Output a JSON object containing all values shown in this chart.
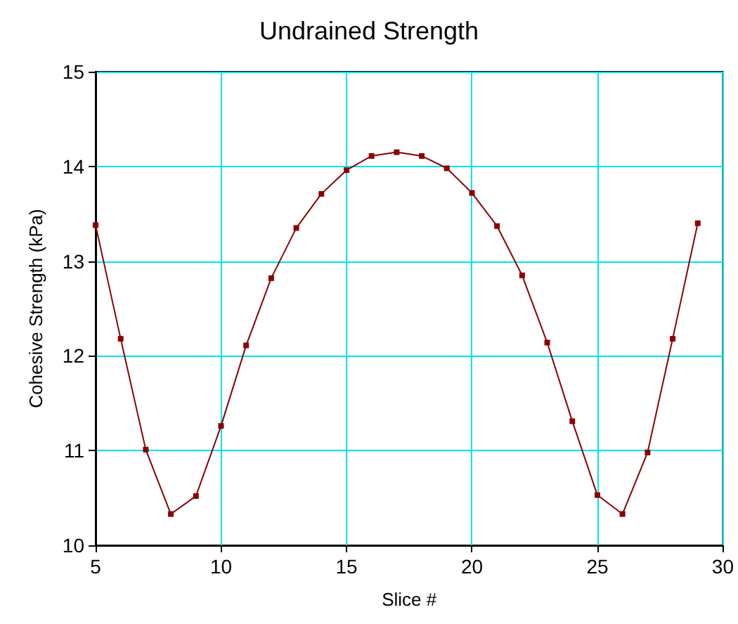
{
  "chart_data": {
    "type": "line",
    "title": "Undrained Strength",
    "xlabel": "Slice #",
    "ylabel": "Cohesive Strength (kPa)",
    "x": [
      5,
      6,
      7,
      8,
      9,
      10,
      11,
      12,
      13,
      14,
      15,
      16,
      17,
      18,
      19,
      20,
      21,
      22,
      23,
      24,
      25,
      26,
      27,
      28,
      29
    ],
    "series": [
      {
        "color": "#8b0000",
        "values": [
          13.38,
          12.18,
          11.01,
          10.33,
          10.52,
          11.26,
          12.11,
          12.82,
          13.35,
          13.71,
          13.96,
          14.11,
          14.15,
          14.11,
          13.98,
          13.72,
          13.37,
          12.85,
          12.14,
          11.31,
          10.53,
          10.33,
          10.98,
          12.18,
          13.4
        ]
      }
    ],
    "xlim": [
      5,
      30
    ],
    "xticks": [
      5,
      10,
      15,
      20,
      25,
      30
    ],
    "ylim": [
      10,
      15
    ],
    "yticks": [
      10,
      11,
      12,
      13,
      14,
      15
    ],
    "grid": true,
    "marker": "square",
    "line_style": "solid"
  }
}
